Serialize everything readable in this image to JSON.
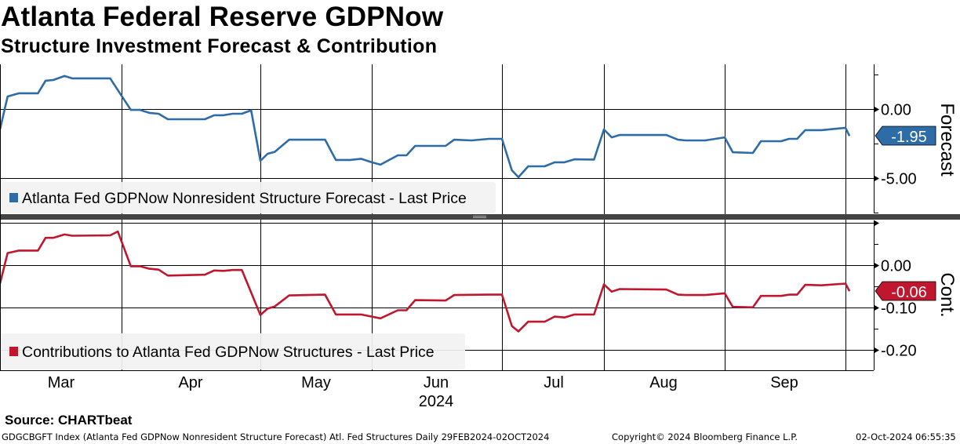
{
  "header": {
    "title": "Atlanta Federal Reserve GDPNow",
    "subtitle": "Structure Investment Forecast & Contribution"
  },
  "footer": {
    "source": "Source: CHARTbeat",
    "description": "GDGCBGFT Index (Atlanta Fed GDPNow Nonresident Structure Forecast) Atl. Fed Structures  Daily 29FEB2024-02OCT2024",
    "copyright": "Copyright© 2024 Bloomberg Finance L.P.",
    "timestamp": "02-Oct-2024 06:55:35"
  },
  "colors": {
    "forecast": "#2e6ca8",
    "contribution": "#c0172f",
    "legend_bg": "#f2f2f2",
    "separator": "#444444"
  },
  "chart_data": [
    {
      "type": "line",
      "title": "Forecast",
      "ylabel": "Forecast",
      "ylim": [
        -8.2,
        3.2
      ],
      "yticks": [
        0,
        -5
      ],
      "ytick_labels": [
        "0.00",
        "-5.00"
      ],
      "xlim": [
        "2024-02-29",
        "2024-10-08"
      ],
      "x_tick_labels": [
        "Mar",
        "Apr",
        "May",
        "Jun",
        "Jul",
        "Aug",
        "Sep"
      ],
      "x_year_label": "2024",
      "grid": true,
      "legend": "bottom-left",
      "series": [
        {
          "name": "Atlanta Fed GDPNow Nonresident Structure Forecast - Last Price",
          "last_value_label": "-1.95",
          "points": [
            [
              "2024-02-29",
              -1.48
            ],
            [
              "2024-03-02",
              0.91
            ],
            [
              "2024-03-05",
              1.14
            ],
            [
              "2024-03-10",
              1.14
            ],
            [
              "2024-03-12",
              2.05
            ],
            [
              "2024-03-14",
              2.1
            ],
            [
              "2024-03-17",
              2.39
            ],
            [
              "2024-03-19",
              2.22
            ],
            [
              "2024-03-29",
              2.22
            ],
            [
              "2024-04-03",
              -0.06
            ],
            [
              "2024-04-05",
              -0.06
            ],
            [
              "2024-04-07",
              -0.28
            ],
            [
              "2024-04-09",
              -0.34
            ],
            [
              "2024-04-11",
              -0.74
            ],
            [
              "2024-04-19",
              -0.74
            ],
            [
              "2024-04-21",
              -0.45
            ],
            [
              "2024-04-23",
              -0.45
            ],
            [
              "2024-04-25",
              -0.34
            ],
            [
              "2024-04-27",
              -0.34
            ],
            [
              "2024-04-29",
              -0.09
            ],
            [
              "2024-05-01",
              -3.75
            ],
            [
              "2024-05-03",
              -3.24
            ],
            [
              "2024-05-05",
              -3.1
            ],
            [
              "2024-05-09",
              -2.22
            ],
            [
              "2024-05-19",
              -2.22
            ],
            [
              "2024-05-22",
              -3.69
            ],
            [
              "2024-05-26",
              -3.69
            ],
            [
              "2024-05-29",
              -3.6
            ],
            [
              "2024-06-01",
              -3.86
            ],
            [
              "2024-06-03",
              -4.03
            ],
            [
              "2024-06-07",
              -3.35
            ],
            [
              "2024-06-09",
              -3.35
            ],
            [
              "2024-06-11",
              -2.67
            ],
            [
              "2024-06-18",
              -2.67
            ],
            [
              "2024-06-20",
              -2.22
            ],
            [
              "2024-06-24",
              -2.27
            ],
            [
              "2024-06-28",
              -2.16
            ],
            [
              "2024-07-01",
              -2.16
            ],
            [
              "2024-07-04",
              -4.43
            ],
            [
              "2024-07-06",
              -4.94
            ],
            [
              "2024-07-09",
              -4.15
            ],
            [
              "2024-07-14",
              -4.15
            ],
            [
              "2024-07-17",
              -3.86
            ],
            [
              "2024-07-20",
              -3.86
            ],
            [
              "2024-07-23",
              -3.64
            ],
            [
              "2024-07-29",
              -3.66
            ],
            [
              "2024-08-01",
              -1.48
            ],
            [
              "2024-08-03",
              -2.05
            ],
            [
              "2024-08-05",
              -1.88
            ],
            [
              "2024-08-17",
              -1.88
            ],
            [
              "2024-08-20",
              -2.22
            ],
            [
              "2024-08-22",
              -2.27
            ],
            [
              "2024-08-27",
              -2.27
            ],
            [
              "2024-09-01",
              -2.05
            ],
            [
              "2024-09-03",
              -3.13
            ],
            [
              "2024-09-08",
              -3.18
            ],
            [
              "2024-09-10",
              -2.33
            ],
            [
              "2024-09-15",
              -2.33
            ],
            [
              "2024-09-17",
              -2.16
            ],
            [
              "2024-09-19",
              -2.16
            ],
            [
              "2024-09-21",
              -1.53
            ],
            [
              "2024-09-25",
              -1.53
            ],
            [
              "2024-10-01",
              -1.36
            ],
            [
              "2024-10-02",
              -1.95
            ]
          ]
        }
      ]
    },
    {
      "type": "line",
      "title": "Cont.",
      "ylabel": "Cont.",
      "ylim": [
        -0.249,
        0.106
      ],
      "yticks": [
        0,
        -0.1,
        -0.2
      ],
      "ytick_labels": [
        "0.00",
        "-0.10",
        "-0.20"
      ],
      "xlim": [
        "2024-02-29",
        "2024-10-08"
      ],
      "grid": true,
      "legend": "bottom-left",
      "series": [
        {
          "name": "Contributions to Atlanta Fed GDPNow Structures - Last Price",
          "last_value_label": "-0.06",
          "points": [
            [
              "2024-02-29",
              -0.043
            ],
            [
              "2024-03-02",
              0.029
            ],
            [
              "2024-03-05",
              0.035
            ],
            [
              "2024-03-10",
              0.035
            ],
            [
              "2024-03-12",
              0.065
            ],
            [
              "2024-03-14",
              0.065
            ],
            [
              "2024-03-17",
              0.073
            ],
            [
              "2024-03-19",
              0.07
            ],
            [
              "2024-03-29",
              0.071
            ],
            [
              "2024-03-31",
              0.08
            ],
            [
              "2024-04-03",
              -0.002
            ],
            [
              "2024-04-05",
              -0.002
            ],
            [
              "2024-04-07",
              -0.008
            ],
            [
              "2024-04-09",
              -0.01
            ],
            [
              "2024-04-11",
              -0.024
            ],
            [
              "2024-04-19",
              -0.022
            ],
            [
              "2024-04-21",
              -0.012
            ],
            [
              "2024-04-23",
              -0.013
            ],
            [
              "2024-04-25",
              -0.011
            ],
            [
              "2024-04-27",
              -0.011
            ],
            [
              "2024-05-01",
              -0.117
            ],
            [
              "2024-05-03",
              -0.102
            ],
            [
              "2024-05-05",
              -0.097
            ],
            [
              "2024-05-09",
              -0.071
            ],
            [
              "2024-05-19",
              -0.069
            ],
            [
              "2024-05-22",
              -0.116
            ],
            [
              "2024-05-29",
              -0.116
            ],
            [
              "2024-06-03",
              -0.125
            ],
            [
              "2024-06-07",
              -0.106
            ],
            [
              "2024-06-09",
              -0.106
            ],
            [
              "2024-06-11",
              -0.082
            ],
            [
              "2024-06-18",
              -0.083
            ],
            [
              "2024-06-20",
              -0.07
            ],
            [
              "2024-06-28",
              -0.069
            ],
            [
              "2024-07-01",
              -0.069
            ],
            [
              "2024-07-04",
              -0.143
            ],
            [
              "2024-07-06",
              -0.156
            ],
            [
              "2024-07-09",
              -0.133
            ],
            [
              "2024-07-14",
              -0.133
            ],
            [
              "2024-07-17",
              -0.121
            ],
            [
              "2024-07-20",
              -0.123
            ],
            [
              "2024-07-23",
              -0.116
            ],
            [
              "2024-07-29",
              -0.116
            ],
            [
              "2024-08-01",
              -0.045
            ],
            [
              "2024-08-03",
              -0.062
            ],
            [
              "2024-08-05",
              -0.056
            ],
            [
              "2024-08-17",
              -0.057
            ],
            [
              "2024-08-20",
              -0.069
            ],
            [
              "2024-08-22",
              -0.07
            ],
            [
              "2024-08-27",
              -0.07
            ],
            [
              "2024-09-01",
              -0.066
            ],
            [
              "2024-09-03",
              -0.098
            ],
            [
              "2024-09-08",
              -0.099
            ],
            [
              "2024-09-10",
              -0.072
            ],
            [
              "2024-09-15",
              -0.072
            ],
            [
              "2024-09-17",
              -0.069
            ],
            [
              "2024-09-19",
              -0.069
            ],
            [
              "2024-09-21",
              -0.046
            ],
            [
              "2024-09-25",
              -0.047
            ],
            [
              "2024-10-01",
              -0.043
            ],
            [
              "2024-10-02",
              -0.061
            ]
          ]
        }
      ]
    }
  ]
}
